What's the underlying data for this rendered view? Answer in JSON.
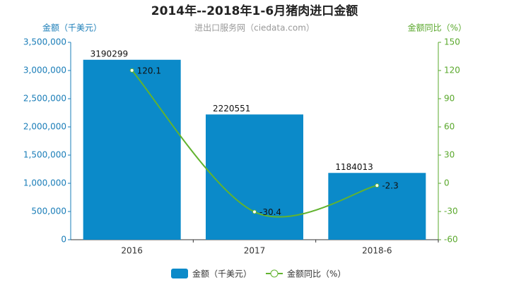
{
  "chart_data": {
    "type": "bar-line",
    "title": "2014年--2018年1-6月猪肉进口金额",
    "subtitle": "进出口服务网（ciedata.com）",
    "ylabel": "金额（千美元）",
    "y2label": "金额同比（%）",
    "categories": [
      "2016",
      "2017",
      "2018-6"
    ],
    "series": [
      {
        "name": "金额（千美元）",
        "type": "bar",
        "color": "#0b8ac9",
        "values": [
          3190299,
          2220551,
          1184013
        ]
      },
      {
        "name": "金额同比（%）",
        "type": "line",
        "axis": "y2",
        "color": "#62b32f",
        "values": [
          120.1,
          -30.4,
          -2.3
        ]
      }
    ],
    "ylim": [
      0,
      3500000
    ],
    "yticks": [
      0,
      {
        "value": 500000,
        "label": "500,000"
      },
      {
        "value": 1000000,
        "label": "1,000,000"
      },
      {
        "value": 1500000,
        "label": "1,500,000"
      },
      {
        "value": 2000000,
        "label": "2,000,000"
      },
      {
        "value": 2500000,
        "label": "2,500,000"
      },
      {
        "value": 3000000,
        "label": "3,000,000"
      },
      {
        "value": 3500000,
        "label": "3,500,000"
      }
    ],
    "y2lim": [
      -60,
      150
    ],
    "y2ticks": [
      -60,
      -30,
      0,
      30,
      60,
      90,
      120,
      150
    ],
    "ycolor": "#1a7db8",
    "y2color": "#5aa82c"
  }
}
